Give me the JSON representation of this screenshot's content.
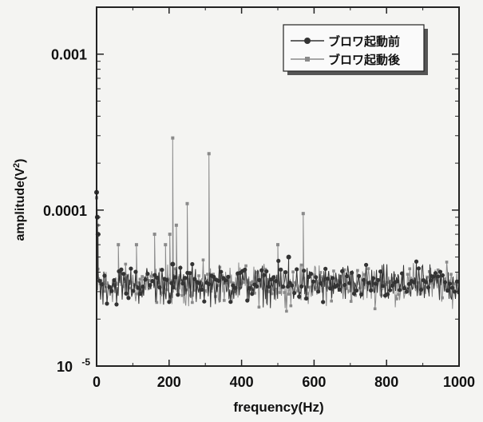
{
  "colors": {
    "background": "#f4f4f2",
    "frame": "#222222",
    "series_before": "#333333",
    "series_after": "#8a8a8a",
    "legend_shadow": "#555555"
  },
  "chart_data": {
    "type": "line",
    "xlabel": "frequency(Hz)",
    "ylabel": "amplitude(V²)",
    "ylabel_main": "amplitude(V",
    "ylabel_sup": "2",
    "ylabel_close": ")",
    "xlim": [
      0,
      1000
    ],
    "ylim": [
      1e-05,
      0.002
    ],
    "y_scale": "log",
    "x_ticks": [
      0,
      200,
      400,
      600,
      800,
      1000
    ],
    "x_tick_labels": [
      "0",
      "200",
      "400",
      "600",
      "800",
      "1000"
    ],
    "y_ticks": [
      1e-05,
      0.0001,
      0.001
    ],
    "y_tick_labels": [
      {
        "main": "10",
        "sup": "-5"
      },
      {
        "main": "0.0001",
        "sup": ""
      },
      {
        "main": "0.001",
        "sup": ""
      }
    ],
    "grid": false,
    "legend_position": "top-right",
    "noise_floor": {
      "x_range": [
        0,
        1000
      ],
      "typical": 3.3e-05,
      "spread": [
        2.2e-05,
        5e-05
      ]
    },
    "series": [
      {
        "name": "ブロワ起動前",
        "marker": "circle",
        "notable_points": [
          {
            "x": 0,
            "y": 0.00013
          },
          {
            "x": 2,
            "y": 9e-05
          },
          {
            "x": 4,
            "y": 7e-05
          },
          {
            "x": 210,
            "y": 4.5e-05
          },
          {
            "x": 530,
            "y": 5e-05
          }
        ]
      },
      {
        "name": "ブロワ起動後",
        "marker": "square",
        "notable_points": [
          {
            "x": 0,
            "y": 0.00012
          },
          {
            "x": 3,
            "y": 8e-05
          },
          {
            "x": 60,
            "y": 6e-05
          },
          {
            "x": 110,
            "y": 6e-05
          },
          {
            "x": 160,
            "y": 7e-05
          },
          {
            "x": 190,
            "y": 6e-05
          },
          {
            "x": 202,
            "y": 7e-05
          },
          {
            "x": 210,
            "y": 0.00029
          },
          {
            "x": 220,
            "y": 8e-05
          },
          {
            "x": 250,
            "y": 0.00011
          },
          {
            "x": 310,
            "y": 0.00023
          },
          {
            "x": 500,
            "y": 6e-05
          },
          {
            "x": 570,
            "y": 9.5e-05
          }
        ]
      }
    ]
  }
}
